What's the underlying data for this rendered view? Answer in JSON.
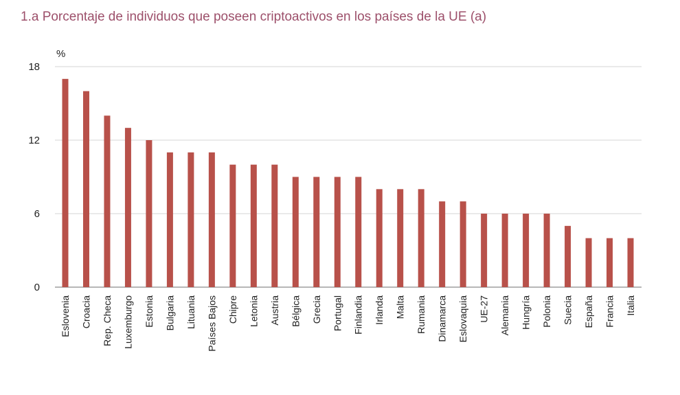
{
  "header": {
    "title": "1.a  Porcentaje de individuos que poseen criptoactivos en los países de la UE (a)"
  },
  "chart_data": {
    "type": "bar",
    "title": "1.a  Porcentaje de individuos que poseen criptoactivos en los países de la UE (a)",
    "xlabel": "",
    "ylabel": "%",
    "ylim": [
      0,
      18
    ],
    "yticks": [
      0,
      6,
      12,
      18
    ],
    "grid": true,
    "bar_color": "#b8514a",
    "categories": [
      "Eslovenia",
      "Croacia",
      "Rep. Checa",
      "Luxemburgo",
      "Estonia",
      "Bulgaria",
      "Lituania",
      "Países Bajos",
      "Chipre",
      "Letonia",
      "Austria",
      "Bélgica",
      "Grecia",
      "Portugal",
      "Finlandia",
      "Irlanda",
      "Malta",
      "Rumania",
      "Dinamarca",
      "Eslovaquia",
      "UE-27",
      "Alemania",
      "Hungría",
      "Polonia",
      "Suecia",
      "España",
      "Francia",
      "Italia"
    ],
    "values": [
      17,
      16,
      14,
      13,
      12,
      11,
      11,
      11,
      10,
      10,
      10,
      9,
      9,
      9,
      9,
      8,
      8,
      8,
      7,
      7,
      6,
      6,
      6,
      6,
      5,
      4,
      4,
      4
    ]
  }
}
